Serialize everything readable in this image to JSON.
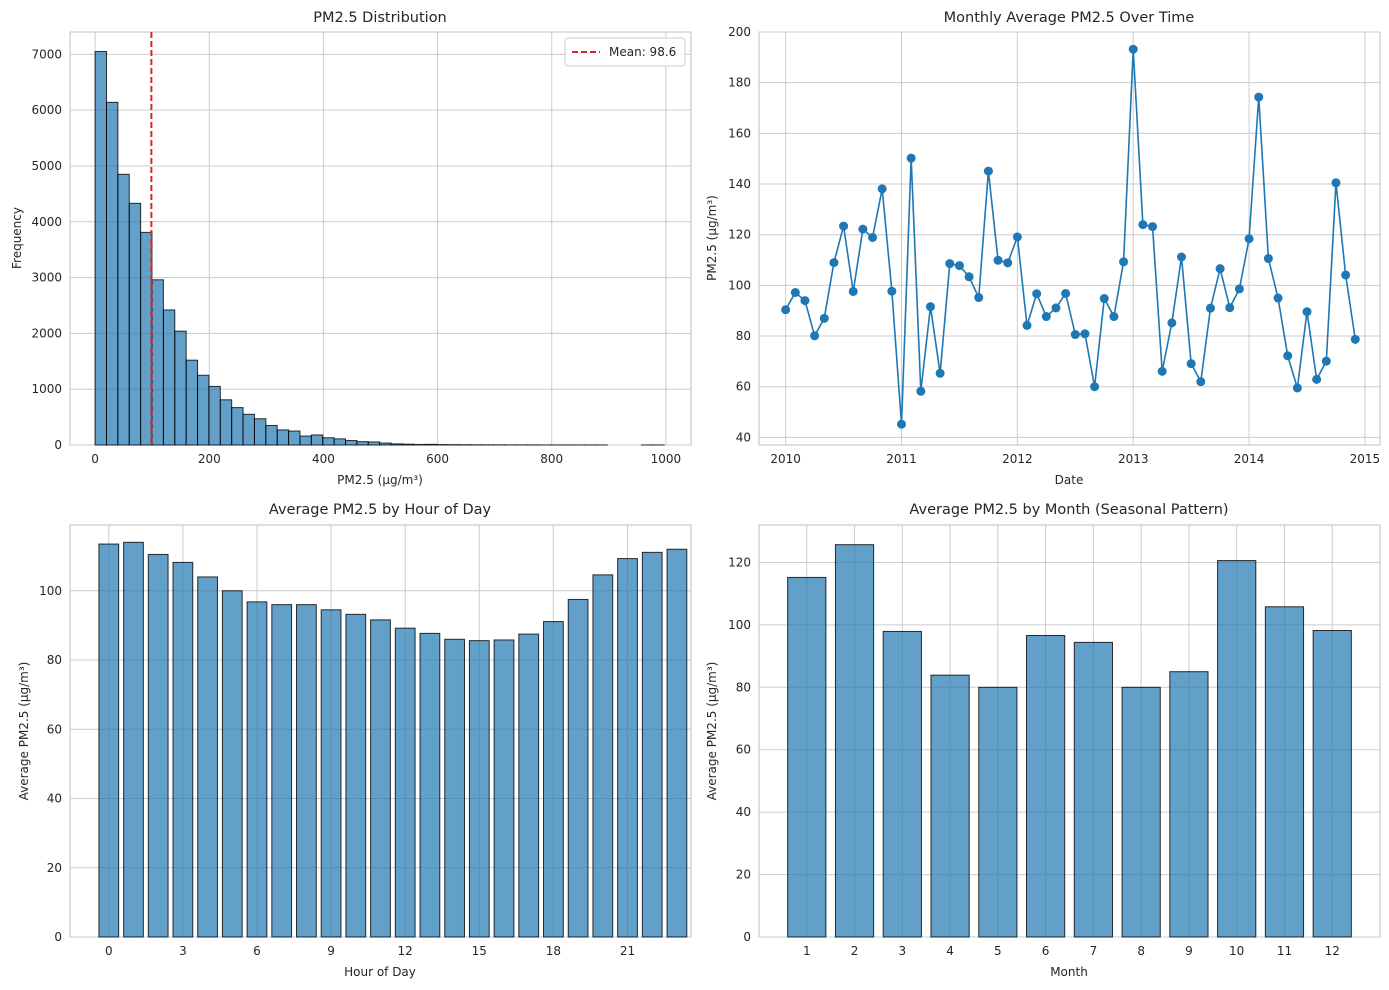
{
  "figure": {
    "colors": {
      "bar": "#1f77b4",
      "line": "#1f77b4",
      "mean_line": "#d62728",
      "grid": "#cccccc"
    }
  },
  "chart_data": [
    {
      "type": "bar",
      "title": "PM2.5 Distribution",
      "xlabel": "PM2.5 (µg/m³)",
      "ylabel": "Frequency",
      "xlim": [
        -44,
        1044
      ],
      "ylim": [
        0,
        7400
      ],
      "xticks": [
        "0",
        "200",
        "400",
        "600",
        "800",
        "1000"
      ],
      "yticks": [
        "0",
        "1000",
        "2000",
        "3000",
        "4000",
        "5000",
        "6000",
        "7000"
      ],
      "bin_width": 19.94,
      "bin_starts": [
        0,
        19.94,
        39.88,
        59.82,
        79.76,
        99.7,
        119.64,
        139.58,
        159.52,
        179.46,
        199.4,
        219.34,
        239.28,
        259.22,
        279.16,
        299.1,
        319.04,
        338.98,
        358.92,
        378.86,
        398.8,
        418.74,
        438.68,
        458.62,
        478.56,
        498.5,
        518.44,
        538.38,
        558.32,
        578.26,
        598.2,
        618.14,
        638.08,
        658.02,
        677.96,
        697.9,
        717.84,
        737.78,
        757.72,
        777.66,
        797.6,
        817.54,
        837.48,
        857.42,
        877.36,
        897.3,
        917.24,
        937.18,
        957.12,
        977.06
      ],
      "counts": [
        7050,
        6140,
        4850,
        4330,
        3810,
        2960,
        2420,
        2040,
        1520,
        1250,
        1050,
        810,
        670,
        550,
        470,
        350,
        270,
        250,
        160,
        180,
        130,
        110,
        80,
        60,
        55,
        35,
        20,
        15,
        10,
        12,
        8,
        6,
        5,
        4,
        3,
        3,
        2,
        2,
        2,
        1,
        1,
        1,
        1,
        1,
        1,
        0,
        0,
        0,
        1,
        1
      ],
      "mean_line": {
        "value": 98.6,
        "legend": "Mean: 98.6"
      }
    },
    {
      "type": "line",
      "title": "Monthly Average PM2.5 Over Time",
      "xlabel": "Date",
      "ylabel": "PM2.5 (µg/m³)",
      "xlim": [
        2009.77,
        2015.13
      ],
      "ylim": [
        37,
        200
      ],
      "xticks": [
        "2010",
        "2011",
        "2012",
        "2013",
        "2014",
        "2015"
      ],
      "yticks": [
        "40",
        "60",
        "80",
        "100",
        "120",
        "140",
        "160",
        "180",
        "200"
      ],
      "x_start": 2010,
      "x_step": 0.0833333,
      "values": [
        90.4,
        97.2,
        94.0,
        80.1,
        87.0,
        109.0,
        123.4,
        97.6,
        122.2,
        118.9,
        138.1,
        97.7,
        45.2,
        150.2,
        58.2,
        91.6,
        65.3,
        108.6,
        107.8,
        103.4,
        95.2,
        145.1,
        109.9,
        108.9,
        119.1,
        84.2,
        96.7,
        87.7,
        91.1,
        96.8,
        80.6,
        80.9,
        60.0,
        94.8,
        87.7,
        109.3,
        193.2,
        124.0,
        123.2,
        66.1,
        85.2,
        111.2,
        69.1,
        62.0,
        91.0,
        106.6,
        91.2,
        98.6,
        118.4,
        174.3,
        110.6,
        95.0,
        72.2,
        59.5,
        89.6,
        62.9,
        70.1,
        140.5,
        104.1,
        78.7
      ]
    },
    {
      "type": "bar",
      "title": "Average PM2.5 by Hour of Day",
      "xlabel": "Hour of Day",
      "ylabel": "Average PM2.5 (µg/m³)",
      "xlim": [
        -1.57,
        23.57
      ],
      "ylim": [
        0,
        119
      ],
      "xticks": [
        "0",
        "3",
        "6",
        "9",
        "12",
        "15",
        "18",
        "21"
      ],
      "yticks": [
        "0",
        "20",
        "40",
        "60",
        "80",
        "100"
      ],
      "categories": [
        "0",
        "1",
        "2",
        "3",
        "4",
        "5",
        "6",
        "7",
        "8",
        "9",
        "10",
        "11",
        "12",
        "13",
        "14",
        "15",
        "16",
        "17",
        "18",
        "19",
        "20",
        "21",
        "22",
        "23"
      ],
      "values": [
        113.5,
        114.0,
        110.5,
        108.2,
        104.0,
        100.0,
        96.8,
        96.0,
        96.0,
        94.5,
        93.2,
        91.6,
        89.2,
        87.7,
        86.0,
        85.6,
        85.8,
        87.5,
        91.1,
        97.5,
        104.6,
        109.3,
        111.1,
        112.0
      ]
    },
    {
      "type": "bar",
      "title": "Average PM2.5 by Month (Seasonal Pattern)",
      "xlabel": "Month",
      "ylabel": "Average PM2.5 (µg/m³)",
      "xlim": [
        0.0,
        13.0
      ],
      "ylim": [
        0,
        132
      ],
      "xticks": [
        "1",
        "2",
        "3",
        "4",
        "5",
        "6",
        "7",
        "8",
        "9",
        "10",
        "11",
        "12"
      ],
      "yticks": [
        "0",
        "20",
        "40",
        "60",
        "80",
        "100",
        "120"
      ],
      "categories": [
        "1",
        "2",
        "3",
        "4",
        "5",
        "6",
        "7",
        "8",
        "9",
        "10",
        "11",
        "12"
      ],
      "values": [
        115.2,
        125.7,
        97.9,
        83.9,
        80.0,
        96.6,
        94.4,
        80.0,
        85.0,
        120.6,
        105.8,
        98.2
      ]
    }
  ]
}
